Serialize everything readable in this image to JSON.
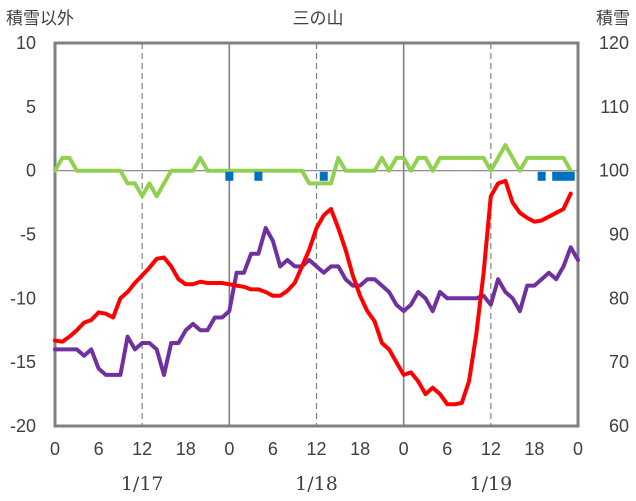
{
  "chart_data": {
    "type": "line",
    "title": "三の山",
    "left_axis_label": "積雪以外",
    "right_axis_label": "積雪",
    "left_ylim": [
      -20,
      10
    ],
    "left_yticks": [
      10,
      5,
      0,
      -5,
      -10,
      -15,
      -20
    ],
    "right_ylim": [
      60,
      120
    ],
    "right_yticks": [
      120,
      110,
      100,
      90,
      80,
      70,
      60
    ],
    "x_range_hours": [
      0,
      72
    ],
    "x_tick_labels": [
      "0",
      "6",
      "12",
      "18",
      "0",
      "6",
      "12",
      "18",
      "0",
      "6",
      "12",
      "18",
      "0"
    ],
    "date_labels": [
      "1/17",
      "1/18",
      "1/19"
    ],
    "grid": "dashed vertical lines at hour 12 of each day; solid vertical lines at day boundaries",
    "legend": "none",
    "series": [
      {
        "color": "#ff0000",
        "axis": "left",
        "points": [
          [
            0,
            -13.3
          ],
          [
            1,
            -13.4
          ],
          [
            2,
            -13
          ],
          [
            3,
            -12.5
          ],
          [
            4,
            -11.9
          ],
          [
            5,
            -11.7
          ],
          [
            6,
            -11.1
          ],
          [
            7,
            -11.2
          ],
          [
            8,
            -11.5
          ],
          [
            9,
            -10
          ],
          [
            10,
            -9.5
          ],
          [
            11,
            -8.8
          ],
          [
            12,
            -8.2
          ],
          [
            13,
            -7.6
          ],
          [
            14,
            -6.9
          ],
          [
            15,
            -6.8
          ],
          [
            16,
            -7.5
          ],
          [
            17,
            -8.5
          ],
          [
            18,
            -8.9
          ],
          [
            19,
            -8.9
          ],
          [
            20,
            -8.7
          ],
          [
            21,
            -8.8
          ],
          [
            22,
            -8.8
          ],
          [
            23,
            -8.8
          ],
          [
            24,
            -8.9
          ],
          [
            25,
            -9
          ],
          [
            26,
            -9.1
          ],
          [
            27,
            -9.3
          ],
          [
            28,
            -9.3
          ],
          [
            29,
            -9.5
          ],
          [
            30,
            -9.8
          ],
          [
            31,
            -9.8
          ],
          [
            32,
            -9.4
          ],
          [
            33,
            -8.8
          ],
          [
            34,
            -7.5
          ],
          [
            35,
            -6.2
          ],
          [
            36,
            -4.5
          ],
          [
            37,
            -3.5
          ],
          [
            38,
            -3
          ],
          [
            39,
            -4.5
          ],
          [
            40,
            -6.2
          ],
          [
            41,
            -8.2
          ],
          [
            42,
            -9.8
          ],
          [
            43,
            -11
          ],
          [
            44,
            -11.8
          ],
          [
            45,
            -13.5
          ],
          [
            46,
            -14
          ],
          [
            47,
            -15
          ],
          [
            48,
            -16
          ],
          [
            49,
            -15.8
          ],
          [
            50,
            -16.5
          ],
          [
            51,
            -17.5
          ],
          [
            52,
            -17
          ],
          [
            53,
            -17.5
          ],
          [
            54,
            -18.3
          ],
          [
            55,
            -18.3
          ],
          [
            56,
            -18.2
          ],
          [
            57,
            -16.5
          ],
          [
            58,
            -12.8
          ],
          [
            59,
            -8
          ],
          [
            60,
            -2
          ],
          [
            61,
            -1
          ],
          [
            62,
            -0.8
          ],
          [
            63,
            -2.5
          ],
          [
            64,
            -3.3
          ],
          [
            65,
            -3.7
          ],
          [
            66,
            -4
          ],
          [
            67,
            -3.9
          ],
          [
            68,
            -3.6
          ],
          [
            69,
            -3.3
          ],
          [
            70,
            -3
          ],
          [
            71,
            -1.8
          ]
        ]
      },
      {
        "color": "#7030a0",
        "axis": "left",
        "points": [
          [
            0,
            -14
          ],
          [
            1,
            -14
          ],
          [
            2,
            -14
          ],
          [
            3,
            -14
          ],
          [
            4,
            -14.5
          ],
          [
            5,
            -14
          ],
          [
            6,
            -15.5
          ],
          [
            7,
            -16
          ],
          [
            8,
            -16
          ],
          [
            9,
            -16
          ],
          [
            10,
            -13
          ],
          [
            11,
            -14
          ],
          [
            12,
            -13.5
          ],
          [
            13,
            -13.5
          ],
          [
            14,
            -14
          ],
          [
            15,
            -16
          ],
          [
            16,
            -13.5
          ],
          [
            17,
            -13.5
          ],
          [
            18,
            -12.5
          ],
          [
            19,
            -12
          ],
          [
            20,
            -12.5
          ],
          [
            21,
            -12.5
          ],
          [
            22,
            -11.5
          ],
          [
            23,
            -11.5
          ],
          [
            24,
            -11
          ],
          [
            25,
            -8
          ],
          [
            26,
            -8
          ],
          [
            27,
            -6.5
          ],
          [
            28,
            -6.5
          ],
          [
            29,
            -4.5
          ],
          [
            30,
            -5.5
          ],
          [
            31,
            -7.5
          ],
          [
            32,
            -7
          ],
          [
            33,
            -7.5
          ],
          [
            34,
            -7.5
          ],
          [
            35,
            -7
          ],
          [
            36,
            -7.5
          ],
          [
            37,
            -8
          ],
          [
            38,
            -7.5
          ],
          [
            39,
            -7.5
          ],
          [
            40,
            -8.5
          ],
          [
            41,
            -9
          ],
          [
            42,
            -9
          ],
          [
            43,
            -8.5
          ],
          [
            44,
            -8.5
          ],
          [
            45,
            -9
          ],
          [
            46,
            -9.5
          ],
          [
            47,
            -10.5
          ],
          [
            48,
            -11
          ],
          [
            49,
            -10.5
          ],
          [
            50,
            -9.5
          ],
          [
            51,
            -10
          ],
          [
            52,
            -11
          ],
          [
            53,
            -9.5
          ],
          [
            54,
            -10
          ],
          [
            55,
            -10
          ],
          [
            56,
            -10
          ],
          [
            57,
            -10
          ],
          [
            58,
            -10
          ],
          [
            59,
            -9.8
          ],
          [
            60,
            -10.5
          ],
          [
            61,
            -8.5
          ],
          [
            62,
            -9.5
          ],
          [
            63,
            -10
          ],
          [
            64,
            -11
          ],
          [
            65,
            -9
          ],
          [
            66,
            -9
          ],
          [
            67,
            -8.5
          ],
          [
            68,
            -8
          ],
          [
            69,
            -8.5
          ],
          [
            70,
            -7.5
          ],
          [
            71,
            -6
          ],
          [
            72,
            -7
          ]
        ]
      },
      {
        "color": "#92d050",
        "axis": "left",
        "points": [
          [
            0,
            0
          ],
          [
            1,
            1
          ],
          [
            2,
            1
          ],
          [
            3,
            0
          ],
          [
            4,
            0
          ],
          [
            5,
            0
          ],
          [
            6,
            0
          ],
          [
            7,
            0
          ],
          [
            8,
            0
          ],
          [
            9,
            0
          ],
          [
            10,
            -1
          ],
          [
            11,
            -1
          ],
          [
            12,
            -2
          ],
          [
            13,
            -1
          ],
          [
            14,
            -2
          ],
          [
            15,
            -1
          ],
          [
            16,
            0
          ],
          [
            17,
            0
          ],
          [
            18,
            0
          ],
          [
            19,
            0
          ],
          [
            20,
            1
          ],
          [
            21,
            0
          ],
          [
            22,
            0
          ],
          [
            23,
            0
          ],
          [
            24,
            0
          ],
          [
            25,
            0
          ],
          [
            26,
            0
          ],
          [
            27,
            0
          ],
          [
            28,
            0
          ],
          [
            29,
            0
          ],
          [
            30,
            0
          ],
          [
            31,
            0
          ],
          [
            32,
            0
          ],
          [
            33,
            0
          ],
          [
            34,
            0
          ],
          [
            35,
            -1
          ],
          [
            36,
            -1
          ],
          [
            37,
            -1
          ],
          [
            38,
            -1
          ],
          [
            39,
            1
          ],
          [
            40,
            0
          ],
          [
            41,
            0
          ],
          [
            42,
            0
          ],
          [
            43,
            0
          ],
          [
            44,
            0
          ],
          [
            45,
            1
          ],
          [
            46,
            0
          ],
          [
            47,
            1
          ],
          [
            48,
            1
          ],
          [
            49,
            0
          ],
          [
            50,
            1
          ],
          [
            51,
            1
          ],
          [
            52,
            0
          ],
          [
            53,
            1
          ],
          [
            54,
            1
          ],
          [
            55,
            1
          ],
          [
            56,
            1
          ],
          [
            57,
            1
          ],
          [
            58,
            1
          ],
          [
            59,
            1
          ],
          [
            60,
            0
          ],
          [
            61,
            1
          ],
          [
            62,
            2
          ],
          [
            63,
            1
          ],
          [
            64,
            0
          ],
          [
            65,
            1
          ],
          [
            66,
            1
          ],
          [
            67,
            1
          ],
          [
            68,
            1
          ],
          [
            69,
            1
          ],
          [
            70,
            1
          ],
          [
            71,
            0
          ]
        ]
      },
      {
        "color": "#0070c0",
        "axis": "right",
        "style": "markers",
        "points": [
          [
            24,
            99.2
          ],
          [
            28,
            99.2
          ],
          [
            37,
            99.2
          ],
          [
            67,
            99.2
          ],
          [
            69,
            99.2
          ],
          [
            70,
            99.2
          ],
          [
            71,
            99.2
          ]
        ]
      }
    ]
  }
}
